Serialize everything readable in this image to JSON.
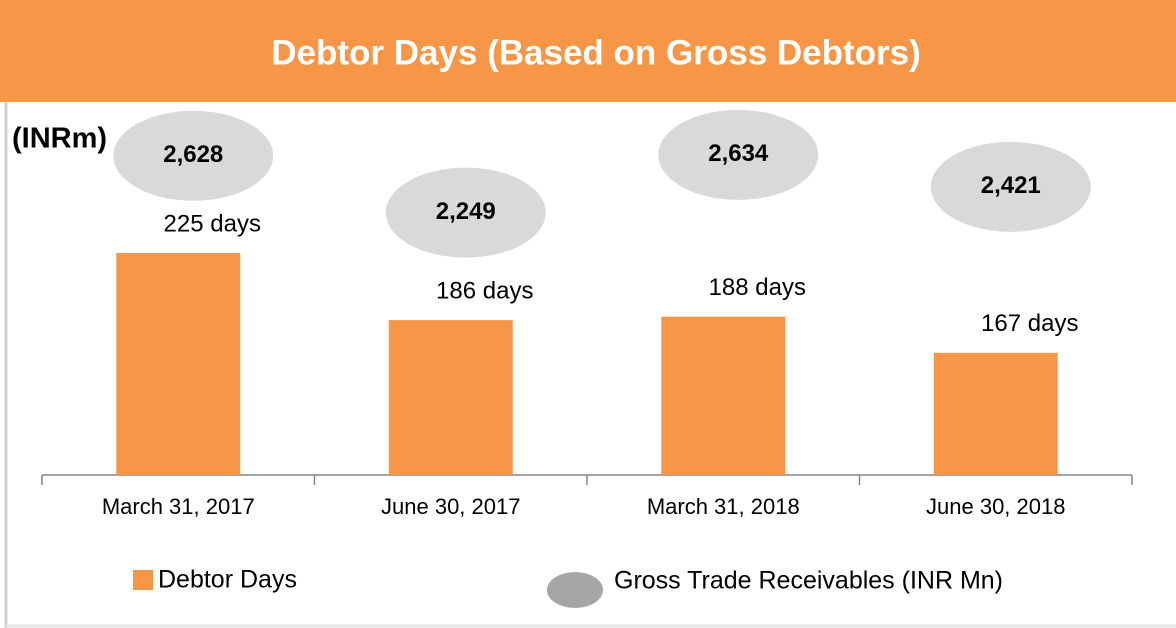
{
  "chart_data": {
    "type": "bar",
    "title": "Debtor Days (Based on Gross Debtors)",
    "y_axis_label": "(INRm)",
    "categories": [
      "March 31, 2017",
      "June 30, 2017",
      "March 31, 2018",
      "June 30, 2018"
    ],
    "series": [
      {
        "name": "Debtor Days",
        "color": "#f79646",
        "values": [
          225,
          186,
          188,
          167
        ],
        "value_labels": [
          "225 days",
          "186 days",
          "188 days",
          "167 days"
        ]
      },
      {
        "name": "Gross Trade Receivables (INR Mn)",
        "color": "#d9d9d9",
        "axis": "y2",
        "values": [
          2628,
          2249,
          2634,
          2421
        ],
        "value_labels": [
          "2,628",
          "2,249",
          "2,634",
          "2,421"
        ]
      }
    ],
    "ylim": [
      96,
      250
    ],
    "y2lim": [
      500,
      3000
    ],
    "grid": false
  }
}
